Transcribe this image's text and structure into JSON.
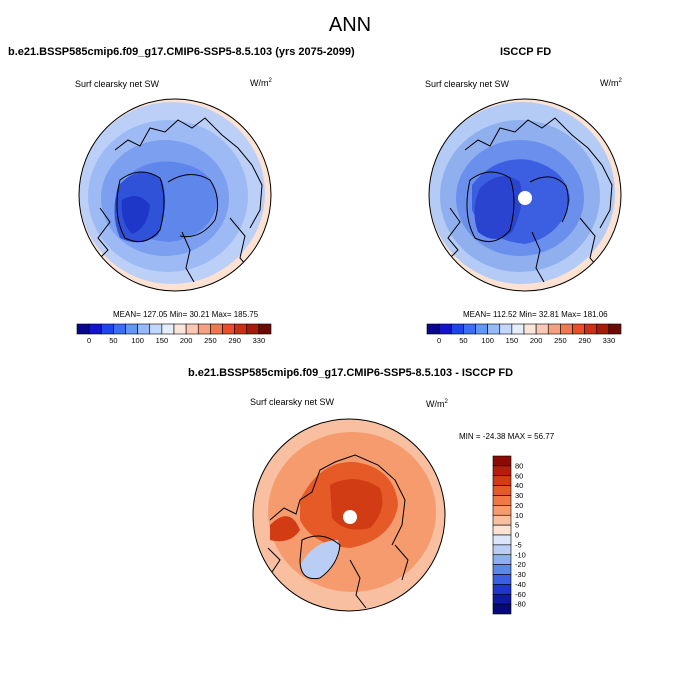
{
  "figure": {
    "title": "ANN"
  },
  "panels": [
    {
      "header": "b.e21.BSSP585cmip6.f09_g17.CMIP6-SSP5-8.5.103 (yrs 2075-2099)",
      "left_label": "Surf clearsky net SW",
      "units_base": "W/m",
      "units_exp": "2",
      "stats": "MEAN= 127.05   Min=  30.21   Max= 185.75"
    },
    {
      "header": "ISCCP FD",
      "left_label": "Surf clearsky net SW",
      "units_base": "W/m",
      "units_exp": "2",
      "stats": "MEAN= 112.52   Min=  32.81   Max= 181.06"
    },
    {
      "header": "b.e21.BSSP585cmip6.f09_g17.CMIP6-SSP5-8.5.103 - ISCCP FD",
      "left_label": "Surf clearsky net SW",
      "units_base": "W/m",
      "units_exp": "2",
      "stats": "MIN = -24.38 MAX =  56.77"
    }
  ],
  "colorbars": {
    "top": {
      "labels": [
        "0",
        "50",
        "100",
        "150",
        "200",
        "250",
        "290",
        "330"
      ],
      "colors": [
        "#08088c",
        "#1414c8",
        "#1e46e6",
        "#3c6ef0",
        "#6496f5",
        "#96b9f8",
        "#c3d7fa",
        "#e6eefc",
        "#fbe6dc",
        "#fac8b4",
        "#f5a082",
        "#f07850",
        "#e65028",
        "#c83214",
        "#a01e0a",
        "#6e0a05"
      ]
    },
    "diff": {
      "labels": [
        "80",
        "60",
        "40",
        "30",
        "20",
        "10",
        "5",
        "0",
        "-5",
        "-10",
        "-20",
        "-30",
        "-40",
        "-60",
        "-80"
      ],
      "colors": [
        "#8c0a05",
        "#b41e0a",
        "#d23c14",
        "#e65a28",
        "#f07846",
        "#f59b6e",
        "#f8c0a0",
        "#fbe2d2",
        "#dce6fa",
        "#b9cdf5",
        "#8cafef",
        "#5f87eb",
        "#3c5fe1",
        "#1e37c8",
        "#0f19a0",
        "#050a78"
      ]
    }
  },
  "chart_data": [
    {
      "type": "heatmap",
      "title": "b.e21.BSSP585cmip6.f09_g17.CMIP6-SSP5-8.5.103 (yrs 2075-2099)",
      "variable": "Surf clearsky net SW",
      "units": "W/m2",
      "projection": "north polar stereographic",
      "colorbar_levels": [
        0,
        50,
        100,
        150,
        200,
        250,
        290,
        330
      ],
      "mean": 127.05,
      "min": 30.21,
      "max": 185.75
    },
    {
      "type": "heatmap",
      "title": "ISCCP FD",
      "variable": "Surf clearsky net SW",
      "units": "W/m2",
      "projection": "north polar stereographic",
      "colorbar_levels": [
        0,
        50,
        100,
        150,
        200,
        250,
        290,
        330
      ],
      "mean": 112.52,
      "min": 32.81,
      "max": 181.06
    },
    {
      "type": "heatmap",
      "title": "b.e21.BSSP585cmip6.f09_g17.CMIP6-SSP5-8.5.103 - ISCCP FD",
      "variable": "Surf clearsky net SW",
      "units": "W/m2",
      "projection": "north polar stereographic",
      "colorbar_levels": [
        80,
        60,
        40,
        30,
        20,
        10,
        5,
        0,
        -5,
        -10,
        -20,
        -30,
        -40,
        -60,
        -80
      ],
      "min": -24.38,
      "max": 56.77
    }
  ]
}
